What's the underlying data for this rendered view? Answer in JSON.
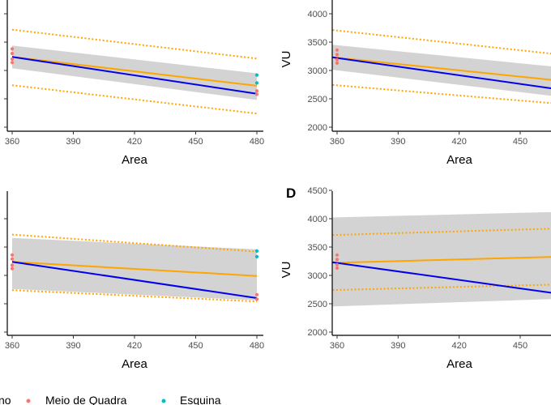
{
  "chart_data": [
    {
      "type": "line",
      "panel_tag": "",
      "xlabel": "Area",
      "ylabel": "",
      "xlim": [
        359,
        482
      ],
      "xticks": [
        360,
        390,
        420,
        450,
        480
      ],
      "ylim": [
        1960,
        4250
      ],
      "yticks": [
        2000,
        2500,
        3000,
        3500,
        4000
      ],
      "show_y_tick_labels": false,
      "band_gray": {
        "x": [
          360,
          480
        ],
        "upper": [
          3440,
          2950
        ],
        "lower": [
          3040,
          2480
        ]
      },
      "line_blue": {
        "x": [
          360,
          480
        ],
        "y": [
          3240,
          2590
        ]
      },
      "line_orange": {
        "x": [
          360,
          480
        ],
        "y": [
          3240,
          2730
        ]
      },
      "dotted_upper": {
        "x": [
          360,
          480
        ],
        "y": [
          3720,
          3210
        ]
      },
      "dotted_lower": {
        "x": [
          360,
          480
        ],
        "y": [
          2740,
          2240
        ]
      },
      "points": [
        {
          "x": 360,
          "y": 3380,
          "group": "Meio de Quadra"
        },
        {
          "x": 360,
          "y": 3300,
          "group": "Meio de Quadra"
        },
        {
          "x": 360,
          "y": 3200,
          "group": "Meio de Quadra"
        },
        {
          "x": 360,
          "y": 3140,
          "group": "Meio de Quadra"
        },
        {
          "x": 480,
          "y": 2640,
          "group": "Meio de Quadra"
        },
        {
          "x": 480,
          "y": 2580,
          "group": "Meio de Quadra"
        },
        {
          "x": 480,
          "y": 2920,
          "group": "Esquina"
        },
        {
          "x": 480,
          "y": 2780,
          "group": "Esquina"
        }
      ]
    },
    {
      "type": "line",
      "panel_tag": "",
      "xlabel": "Area",
      "ylabel": "VU",
      "xlim": [
        356,
        482
      ],
      "xticks": [
        360,
        390,
        420,
        450
      ],
      "ylim": [
        1960,
        4250
      ],
      "yticks": [
        2000,
        2500,
        3000,
        3500,
        4000
      ],
      "show_y_tick_labels": true,
      "band_gray": {
        "x": [
          356,
          480
        ],
        "upper": [
          3460,
          3020
        ],
        "lower": [
          3020,
          2490
        ]
      },
      "line_blue": {
        "x": [
          356,
          480
        ],
        "y": [
          3240,
          2610
        ]
      },
      "line_orange": {
        "x": [
          356,
          480
        ],
        "y": [
          3240,
          2780
        ]
      },
      "dotted_upper": {
        "x": [
          356,
          480
        ],
        "y": [
          3720,
          3240
        ]
      },
      "dotted_lower": {
        "x": [
          356,
          480
        ],
        "y": [
          2750,
          2380
        ]
      },
      "points": [
        {
          "x": 360,
          "y": 3360,
          "group": "Meio de Quadra"
        },
        {
          "x": 360,
          "y": 3280,
          "group": "Meio de Quadra"
        },
        {
          "x": 360,
          "y": 3190,
          "group": "Meio de Quadra"
        },
        {
          "x": 360,
          "y": 3130,
          "group": "Meio de Quadra"
        }
      ]
    },
    {
      "type": "line",
      "panel_tag": "",
      "xlabel": "Area",
      "ylabel": "",
      "xlim": [
        359,
        482
      ],
      "xticks": [
        360,
        390,
        420,
        450,
        480
      ],
      "ylim": [
        1960,
        4250
      ],
      "yticks": [
        2000,
        2500,
        3000,
        3500,
        4000
      ],
      "show_y_tick_labels": false,
      "band_gray": {
        "x": [
          360,
          480
        ],
        "upper": [
          3660,
          3460
        ],
        "lower": [
          2760,
          2560
        ]
      },
      "line_blue": {
        "x": [
          360,
          480
        ],
        "y": [
          3240,
          2600
        ]
      },
      "line_orange": {
        "x": [
          360,
          480
        ],
        "y": [
          3240,
          2990
        ]
      },
      "dotted_upper": {
        "x": [
          360,
          480
        ],
        "y": [
          3720,
          3420
        ]
      },
      "dotted_lower": {
        "x": [
          360,
          480
        ],
        "y": [
          2740,
          2540
        ]
      },
      "points": [
        {
          "x": 360,
          "y": 3360,
          "group": "Meio de Quadra"
        },
        {
          "x": 360,
          "y": 3290,
          "group": "Meio de Quadra"
        },
        {
          "x": 360,
          "y": 3180,
          "group": "Meio de Quadra"
        },
        {
          "x": 360,
          "y": 3120,
          "group": "Meio de Quadra"
        },
        {
          "x": 480,
          "y": 2660,
          "group": "Meio de Quadra"
        },
        {
          "x": 480,
          "y": 2580,
          "group": "Meio de Quadra"
        },
        {
          "x": 480,
          "y": 3430,
          "group": "Esquina"
        },
        {
          "x": 480,
          "y": 3330,
          "group": "Esquina"
        }
      ]
    },
    {
      "type": "line",
      "panel_tag": "D",
      "xlabel": "Area",
      "ylabel": "VU",
      "xlim": [
        356,
        482
      ],
      "xticks": [
        360,
        390,
        420,
        450
      ],
      "ylim": [
        1960,
        4520
      ],
      "yticks": [
        2000,
        2500,
        3000,
        3500,
        4000,
        4500
      ],
      "show_y_tick_labels": true,
      "band_gray": {
        "x": [
          356,
          480
        ],
        "upper": [
          4020,
          4130
        ],
        "lower": [
          2450,
          2600
        ]
      },
      "line_blue": {
        "x": [
          356,
          480
        ],
        "y": [
          3240,
          2620
        ]
      },
      "line_orange": {
        "x": [
          356,
          480
        ],
        "y": [
          3220,
          3340
        ]
      },
      "dotted_upper": {
        "x": [
          356,
          480
        ],
        "y": [
          3710,
          3840
        ]
      },
      "dotted_lower": {
        "x": [
          356,
          480
        ],
        "y": [
          2740,
          2850
        ]
      },
      "points": [
        {
          "x": 360,
          "y": 3360,
          "group": "Meio de Quadra"
        },
        {
          "x": 360,
          "y": 3280,
          "group": "Meio de Quadra"
        },
        {
          "x": 360,
          "y": 3190,
          "group": "Meio de Quadra"
        },
        {
          "x": 360,
          "y": 3130,
          "group": "Meio de Quadra"
        }
      ]
    }
  ],
  "legend": {
    "title_fragment": "no",
    "entries": [
      {
        "label": "Meio de Quadra",
        "color": "#F8766D"
      },
      {
        "label": "Esquina",
        "color": "#00BFC4"
      }
    ]
  },
  "colors": {
    "band": "#d3d3d3",
    "blue": "#0000ee",
    "orange": "#FFA500",
    "meio": "#F8766D",
    "esquina": "#00BFC4"
  }
}
